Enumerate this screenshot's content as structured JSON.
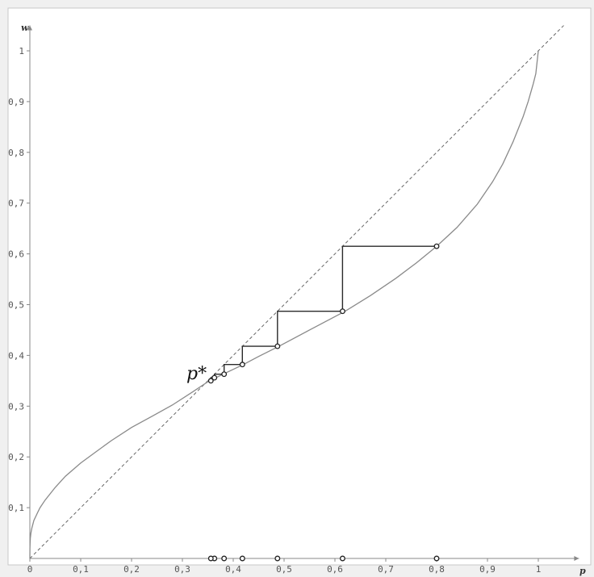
{
  "chart_data": {
    "type": "line",
    "xlabel": "p",
    "ylabel": "w",
    "xlim": [
      0,
      1.08
    ],
    "ylim": [
      0,
      1.05
    ],
    "x_ticks": [
      "0",
      "0,1",
      "0,2",
      "0,3",
      "0,4",
      "0,5",
      "0,6",
      "0,7",
      "0,8",
      "0,9",
      "1"
    ],
    "y_ticks": [
      "0,1",
      "0,2",
      "0,3",
      "0,4",
      "0,5",
      "0,6",
      "0,7",
      "0,8",
      "0,9",
      "1"
    ],
    "annotation": "p*",
    "fixed_point": {
      "x": 0.35,
      "y": 0.35
    },
    "diagonal": {
      "style": "dashed",
      "points": [
        [
          0,
          0
        ],
        [
          1.05,
          1.05
        ]
      ]
    },
    "curve": {
      "points": [
        [
          0,
          0
        ],
        [
          0.0002,
          0.02
        ],
        [
          0.0005,
          0.03
        ],
        [
          0.001,
          0.04
        ],
        [
          0.002,
          0.05
        ],
        [
          0.004,
          0.06
        ],
        [
          0.008,
          0.075
        ],
        [
          0.015,
          0.09
        ],
        [
          0.02,
          0.1
        ],
        [
          0.03,
          0.115
        ],
        [
          0.05,
          0.14
        ],
        [
          0.07,
          0.162
        ],
        [
          0.1,
          0.188
        ],
        [
          0.13,
          0.21
        ],
        [
          0.16,
          0.232
        ],
        [
          0.2,
          0.258
        ],
        [
          0.24,
          0.28
        ],
        [
          0.28,
          0.302
        ],
        [
          0.32,
          0.328
        ],
        [
          0.35,
          0.348
        ],
        [
          0.38,
          0.363
        ],
        [
          0.42,
          0.382
        ],
        [
          0.45,
          0.398
        ],
        [
          0.49,
          0.418
        ],
        [
          0.55,
          0.45
        ],
        [
          0.62,
          0.487
        ],
        [
          0.67,
          0.518
        ],
        [
          0.72,
          0.552
        ],
        [
          0.76,
          0.582
        ],
        [
          0.8,
          0.615
        ],
        [
          0.84,
          0.652
        ],
        [
          0.88,
          0.698
        ],
        [
          0.91,
          0.742
        ],
        [
          0.93,
          0.777
        ],
        [
          0.95,
          0.82
        ],
        [
          0.97,
          0.87
        ],
        [
          0.98,
          0.9
        ],
        [
          0.99,
          0.935
        ],
        [
          0.995,
          0.955
        ],
        [
          1,
          1
        ]
      ]
    },
    "cobweb": {
      "points": [
        [
          0.8,
          0.615
        ],
        [
          0.615,
          0.615
        ],
        [
          0.615,
          0.487
        ],
        [
          0.487,
          0.487
        ],
        [
          0.487,
          0.418
        ],
        [
          0.418,
          0.418
        ],
        [
          0.418,
          0.382
        ],
        [
          0.382,
          0.382
        ],
        [
          0.382,
          0.363
        ],
        [
          0.363,
          0.363
        ],
        [
          0.363,
          0.356
        ],
        [
          0.356,
          0.356
        ],
        [
          0.356,
          0.35
        ]
      ]
    },
    "iterates": [
      {
        "x": 0.8,
        "y": 0.615
      },
      {
        "x": 0.615,
        "y": 0.487
      },
      {
        "x": 0.487,
        "y": 0.418
      },
      {
        "x": 0.418,
        "y": 0.382
      },
      {
        "x": 0.382,
        "y": 0.363
      },
      {
        "x": 0.363,
        "y": 0.356
      },
      {
        "x": 0.356,
        "y": 0.35
      }
    ],
    "axis_points": [
      0.8,
      0.615,
      0.487,
      0.418,
      0.382,
      0.363,
      0.356
    ]
  }
}
